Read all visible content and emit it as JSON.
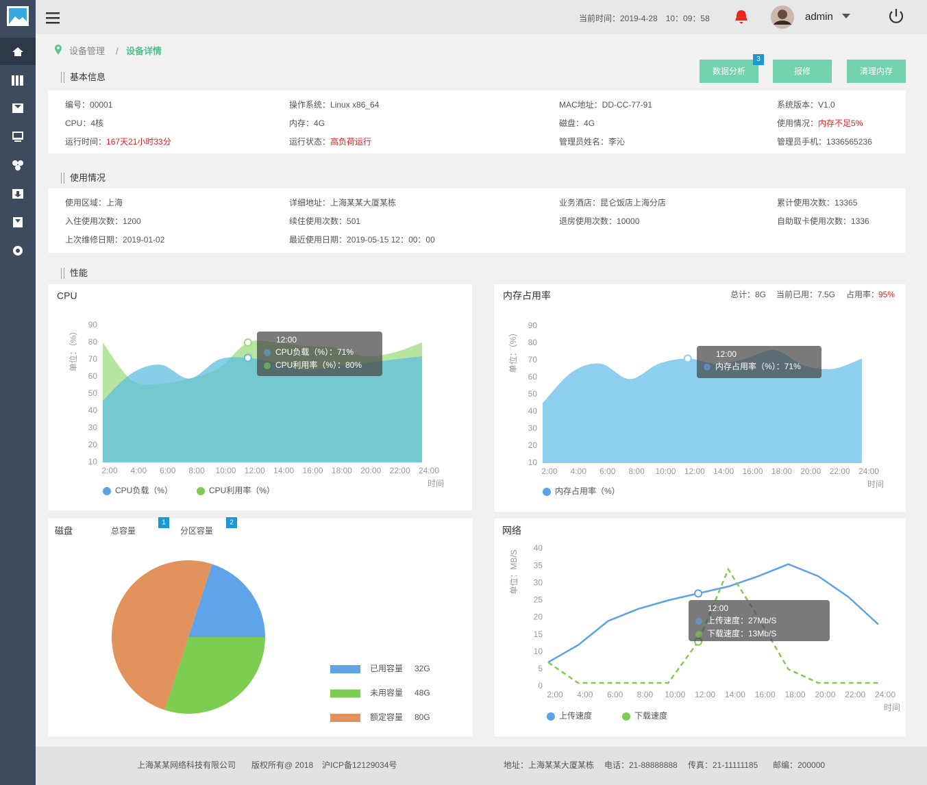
{
  "header": {
    "current_time": "当前时间：2019-4-28　10：09：58",
    "user": "admin"
  },
  "breadcrumb": [
    "设备管理",
    "/",
    "设备详情"
  ],
  "actions": [
    {
      "label": "数据分析",
      "badge": "3"
    },
    {
      "label": "报修"
    },
    {
      "label": "清理内存"
    }
  ],
  "basic_info": {
    "title": "基本信息",
    "columns": [
      [
        {
          "label": "编号：",
          "value": "00001"
        },
        {
          "label": "CPU：",
          "value": "4核"
        },
        {
          "label": "运行时间：",
          "value": "167天21小时33分",
          "alert": true
        }
      ],
      [
        {
          "label": "操作系统：",
          "value": "Linux x86_64"
        },
        {
          "label": "内存：",
          "value": "4G"
        },
        {
          "label": "运行状态：",
          "value": "高负荷运行",
          "alert": true
        }
      ],
      [
        {
          "label": "MAC地址：",
          "value": "DD-CC-77-91"
        },
        {
          "label": "磁盘：",
          "value": "4G"
        },
        {
          "label": "管理员姓名：",
          "value": "李沁"
        }
      ],
      [
        {
          "label": "系统版本：",
          "value": "V1.0"
        },
        {
          "label": "使用情况：",
          "value": "内存不足5%",
          "alert": true
        },
        {
          "label": "管理员手机：",
          "value": "1336565236"
        }
      ]
    ]
  },
  "usage": {
    "title": "使用情况",
    "columns": [
      [
        {
          "label": "使用区域：",
          "value": "上海"
        },
        {
          "label": "入住使用次数：",
          "value": "1200"
        },
        {
          "label": "上次维修日期：",
          "value": "2019-01-02"
        }
      ],
      [
        {
          "label": "详细地址：",
          "value": "上海某某大厦某栋"
        },
        {
          "label": "续住使用次数：",
          "value": "501"
        },
        {
          "label": "最近使用日期：",
          "value": "2019-05-15 12：00：00"
        }
      ],
      [
        {
          "label": "业务酒店：",
          "value": "昆仑饭店上海分店"
        },
        {
          "label": "退房使用次数：",
          "value": "10000"
        }
      ],
      [
        {
          "label": "累计使用次数：",
          "value": "13365"
        },
        {
          "label": "自助取卡使用次数：",
          "value": "1336"
        }
      ]
    ]
  },
  "performance": {
    "title": "性能"
  },
  "cpu_chart": {
    "type": "area",
    "title": "CPU",
    "y_label": "单位：（%）",
    "x_label": "时间",
    "categories": [
      "2:00",
      "4:00",
      "6:00",
      "8:00",
      "10:00",
      "12:00",
      "14:00",
      "16:00",
      "18:00",
      "20:00",
      "22:00",
      "24:00"
    ],
    "series": [
      {
        "name": "CPU利用率（%）",
        "color": "#7dcd52",
        "fill": "#9fdc80",
        "values": [
          80,
          58,
          56,
          59,
          65,
          80,
          80,
          78,
          77,
          72,
          74,
          80
        ]
      },
      {
        "name": "CPU负载（%）",
        "color": "#5ba2e6",
        "fill": "#5fbde0",
        "values": [
          46,
          62,
          67,
          59,
          70,
          71,
          68,
          64,
          66,
          68,
          70,
          72
        ]
      }
    ],
    "legend_order": [
      "CPU负载（%）",
      "CPU利用率（%）"
    ],
    "ylim": [
      10,
      90
    ],
    "yticks": [
      10,
      20,
      30,
      40,
      50,
      60,
      70,
      80,
      90
    ],
    "tooltip": {
      "title": "12:00",
      "lines": [
        "CPU负载（%）：71%",
        "CPU利用率（%）：80%"
      ]
    }
  },
  "memory_chart": {
    "type": "area",
    "title": "内存占用率",
    "y_label": "单位：（%）",
    "x_label": "时间",
    "stats": [
      "总计：8G",
      "当前已用：7.5G",
      "占用率："
    ],
    "usage_rate": "95%",
    "categories": [
      "2:00",
      "4:00",
      "6:00",
      "8:00",
      "10:00",
      "12:00",
      "14:00",
      "16:00",
      "18:00",
      "20:00",
      "22:00",
      "24:00"
    ],
    "series": [
      {
        "name": "内存占用率（%）",
        "color": "#5ba2e6",
        "fill": "#8dcfec",
        "values": [
          45,
          63,
          68,
          59,
          68,
          71,
          68,
          71,
          76,
          67,
          65,
          71
        ]
      }
    ],
    "legend_order": [
      "内存占用率（%）"
    ],
    "ylim": [
      10,
      90
    ],
    "yticks": [
      10,
      20,
      30,
      40,
      50,
      60,
      70,
      80,
      90
    ],
    "tooltip": {
      "title": "12:00",
      "lines": [
        "内存占用率（%）：71%"
      ]
    }
  },
  "disk_chart": {
    "type": "pie",
    "title": "磁盘",
    "tabs": [
      {
        "label": "总容量",
        "badge": "1"
      },
      {
        "label": "分区容量",
        "badge": "2"
      }
    ],
    "categories": [
      "已用容量",
      "未用容量",
      "额定容量"
    ],
    "values": [
      32,
      48,
      80
    ],
    "value_labels": [
      "32G",
      "48G",
      "80G"
    ],
    "colors": [
      "#5fa3e8",
      "#7ccd50",
      "#e2925c"
    ]
  },
  "network_chart": {
    "type": "line",
    "title": "网络",
    "y_label": "单位：MB/S",
    "x_label": "时间",
    "categories": [
      "2:00",
      "4:00",
      "6:00",
      "8:00",
      "10:00",
      "12:00",
      "14:00",
      "16:00",
      "18:00",
      "20:00",
      "22:00",
      "24:00"
    ],
    "series": [
      {
        "name": "上传速度",
        "color": "#5ba2e6",
        "dashed": false,
        "values": [
          7,
          12,
          19,
          22.5,
          25,
          27,
          29,
          32,
          35.5,
          32,
          26,
          18
        ]
      },
      {
        "name": "下载速度",
        "color": "#7dcd52",
        "dashed": true,
        "values": [
          7,
          1,
          1,
          1,
          1,
          13,
          34,
          20,
          5,
          1,
          1,
          1
        ]
      }
    ],
    "legend_order": [
      "上传速度",
      "下载速度"
    ],
    "ylim": [
      0,
      40
    ],
    "yticks": [
      0,
      5,
      10,
      15,
      20,
      25,
      30,
      35,
      40
    ],
    "tooltip": {
      "title": "12:00",
      "lines": [
        "上传速度：27Mb/S",
        "下载速度：13Mb/S"
      ]
    }
  },
  "footer": {
    "left": [
      "上海某某网络科技有限公司",
      "版权所有@ 2018",
      "沪ICP备12129034号"
    ],
    "right": [
      "地址：上海某某大厦某栋",
      "电话：21-88888888",
      "传真：21-11111185",
      "邮编：200000"
    ]
  }
}
